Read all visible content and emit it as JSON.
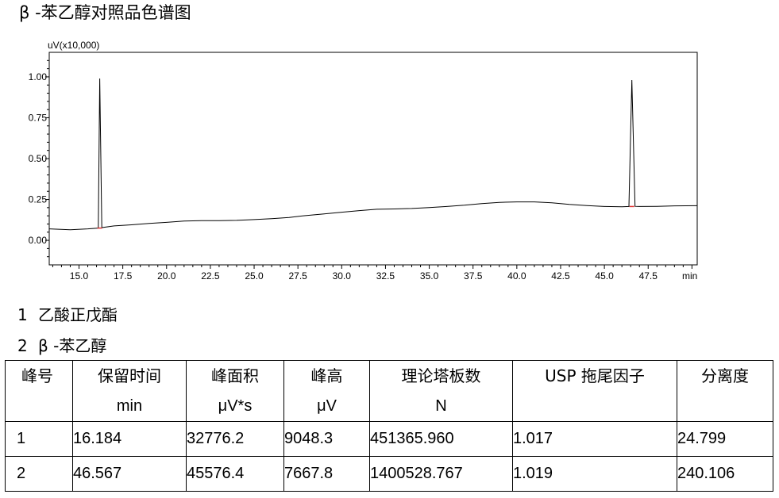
{
  "title": "β -苯乙醇对照品色谱图",
  "chart_data": {
    "type": "line",
    "y_unit_label": "uV(x10,000)",
    "x_unit_label": "min",
    "xlim": [
      13.3,
      50.3
    ],
    "ylim": [
      -0.15,
      1.15
    ],
    "x_ticks": [
      "15.0",
      "17.5",
      "20.0",
      "22.5",
      "25.0",
      "27.5",
      "30.0",
      "32.5",
      "35.0",
      "37.5",
      "40.0",
      "42.5",
      "45.0",
      "47.5"
    ],
    "y_ticks": [
      "0.00",
      "0.25",
      "0.50",
      "0.75",
      "1.00"
    ],
    "grid": false,
    "series": [
      {
        "x": [
          13.3,
          14.5,
          15.5,
          16.1,
          16.184,
          16.3,
          17.0,
          18.0,
          19.0,
          20.0,
          21.0,
          22.0,
          23.0,
          24.0,
          25.0,
          26.0,
          27.0,
          28.0,
          29.0,
          30.0,
          31.0,
          32.0,
          33.0,
          34.0,
          35.0,
          36.0,
          37.0,
          38.0,
          39.0,
          40.0,
          41.0,
          42.0,
          43.0,
          44.0,
          45.0,
          46.0,
          46.4,
          46.567,
          46.75,
          47.0,
          48.0,
          49.0,
          50.3
        ],
        "y": [
          0.07,
          0.065,
          0.07,
          0.075,
          0.99,
          0.078,
          0.088,
          0.095,
          0.103,
          0.11,
          0.118,
          0.12,
          0.12,
          0.122,
          0.127,
          0.133,
          0.14,
          0.152,
          0.162,
          0.172,
          0.182,
          0.19,
          0.192,
          0.195,
          0.2,
          0.207,
          0.215,
          0.225,
          0.232,
          0.235,
          0.235,
          0.23,
          0.22,
          0.213,
          0.207,
          0.205,
          0.207,
          0.98,
          0.208,
          0.207,
          0.208,
          0.211,
          0.212
        ]
      }
    ],
    "peaks": [
      {
        "time": 16.184,
        "height": 0.99
      },
      {
        "time": 46.567,
        "height": 0.98
      }
    ]
  },
  "peak_list": [
    {
      "num": "1",
      "name": "乙酸正戊酯"
    },
    {
      "num": "2",
      "name": "β -苯乙醇"
    }
  ],
  "table": {
    "headers": [
      {
        "cn": "峰号",
        "unit": ""
      },
      {
        "cn": "保留时间",
        "unit": "min"
      },
      {
        "cn": "峰面积",
        "unit": "μV*s"
      },
      {
        "cn": "峰高",
        "unit": "μV"
      },
      {
        "cn": "理论塔板数",
        "unit": "N"
      },
      {
        "cn": "USP 拖尾因子",
        "unit": ""
      },
      {
        "cn": "分离度",
        "unit": ""
      }
    ],
    "rows": [
      [
        "1",
        "16.184",
        "32776.2",
        "9048.3",
        "451365.960",
        "1.017",
        "24.799"
      ],
      [
        "2",
        "46.567",
        "45576.4",
        "7667.8",
        "1400528.767",
        "1.019",
        "240.106"
      ]
    ]
  }
}
